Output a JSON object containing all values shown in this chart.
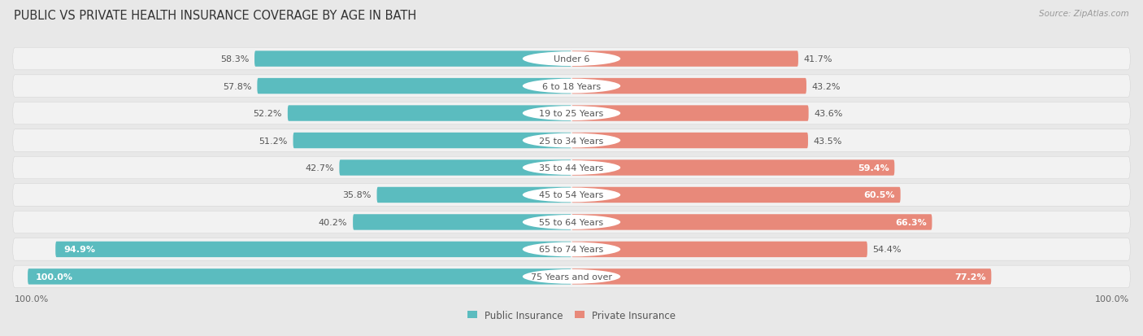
{
  "title": "PUBLIC VS PRIVATE HEALTH INSURANCE COVERAGE BY AGE IN BATH",
  "source": "Source: ZipAtlas.com",
  "categories": [
    "Under 6",
    "6 to 18 Years",
    "19 to 25 Years",
    "25 to 34 Years",
    "35 to 44 Years",
    "45 to 54 Years",
    "55 to 64 Years",
    "65 to 74 Years",
    "75 Years and over"
  ],
  "public_values": [
    58.3,
    57.8,
    52.2,
    51.2,
    42.7,
    35.8,
    40.2,
    94.9,
    100.0
  ],
  "private_values": [
    41.7,
    43.2,
    43.6,
    43.5,
    59.4,
    60.5,
    66.3,
    54.4,
    77.2
  ],
  "public_color": "#5bbcbf",
  "private_color": "#e8897a",
  "bg_color": "#e8e8e8",
  "row_bg_color": "#f2f2f2",
  "label_fontsize": 8.0,
  "title_fontsize": 10.5,
  "source_fontsize": 7.5,
  "legend_fontsize": 8.5,
  "axis_label_fontsize": 8.0,
  "white_inside_label_threshold_pub": 85.0,
  "white_inside_label_threshold_priv": 58.0
}
